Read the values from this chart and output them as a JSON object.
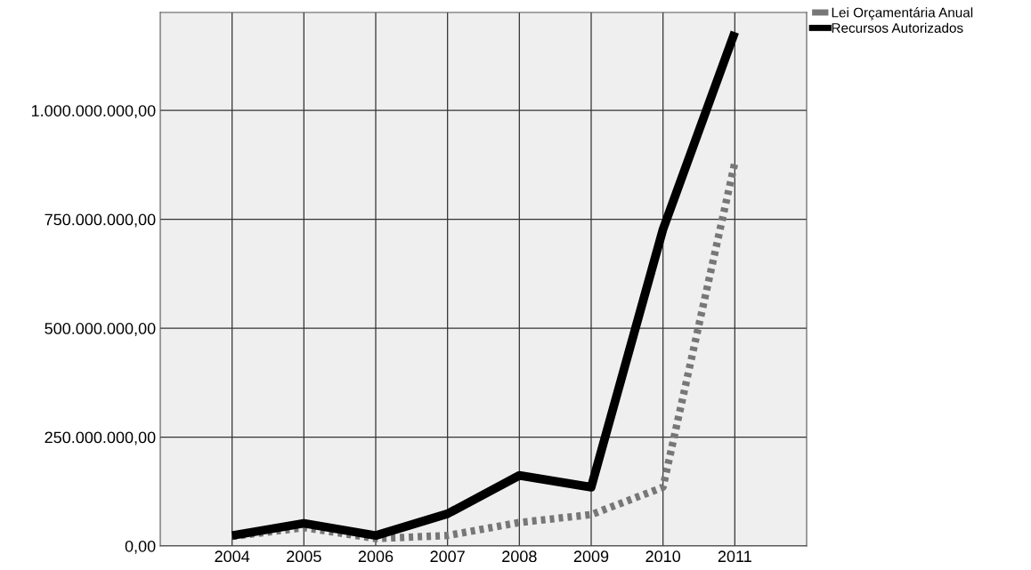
{
  "chart_data": {
    "type": "line",
    "categories": [
      "2004",
      "2005",
      "2006",
      "2007",
      "2008",
      "2009",
      "2010",
      "2011"
    ],
    "series": [
      {
        "name": "Lei Orçamentária Anual",
        "color": "#777777",
        "line_style": "dotted",
        "values": [
          22000000,
          42000000,
          17000000,
          24000000,
          54000000,
          72000000,
          135000000,
          880000000
        ]
      },
      {
        "name": "Recursos Autorizados",
        "color": "#000000",
        "line_style": "solid",
        "values": [
          24000000,
          52000000,
          24000000,
          74000000,
          162000000,
          135000000,
          727000000,
          1180000000
        ]
      }
    ],
    "ylim": [
      0,
      1225000000
    ],
    "yticks": [
      {
        "value": 0,
        "label": "0,00"
      },
      {
        "value": 250000000,
        "label": "250.000.000,00"
      },
      {
        "value": 500000000,
        "label": "500.000.000,00"
      },
      {
        "value": 750000000,
        "label": "750.000.000,00"
      },
      {
        "value": 1000000000,
        "label": "1.000.000.000,00"
      }
    ],
    "grid": true,
    "legend": "top right",
    "marker": "none"
  }
}
